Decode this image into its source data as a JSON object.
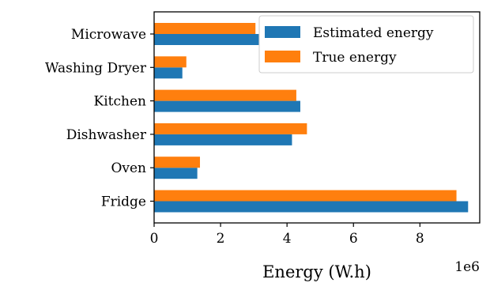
{
  "chart_data": {
    "type": "bar",
    "orientation": "horizontal",
    "categories": [
      "Fridge",
      "Oven",
      "Dishwasher",
      "Kitchen",
      "Washing Dryer",
      "Microwave"
    ],
    "series": [
      {
        "name": "Estimated energy",
        "color": "#1f77b4",
        "values": [
          9450000,
          1300000,
          4150000,
          4400000,
          850000,
          3150000
        ]
      },
      {
        "name": "True energy",
        "color": "#ff7f0e",
        "values": [
          9100000,
          1380000,
          4600000,
          4280000,
          970000,
          3050000
        ]
      }
    ],
    "title": "",
    "xlabel": "Energy (W.h)",
    "ylabel": "",
    "xlim": [
      0,
      9800000
    ],
    "x_ticks": [
      0,
      2000000,
      4000000,
      6000000,
      8000000
    ],
    "x_tick_labels": [
      "0",
      "2",
      "4",
      "6",
      "8"
    ],
    "x_offset_label": "1e6",
    "grid": false,
    "legend_position": "top-right"
  }
}
